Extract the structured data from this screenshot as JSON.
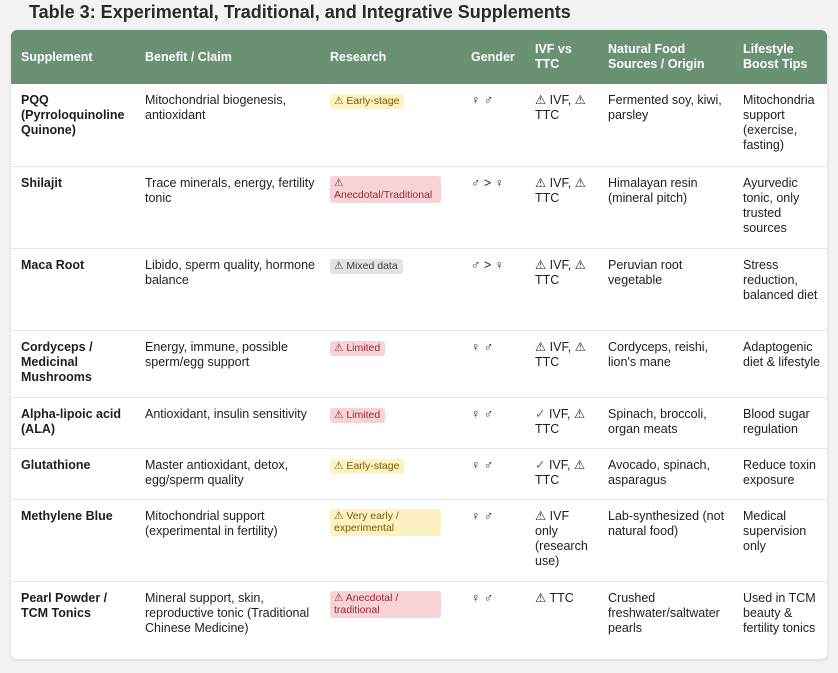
{
  "title": "Table 3: Experimental, Traditional, and Integrative Supplements",
  "colors": {
    "header_bg": "#6a9174",
    "early": "#fdf2c3",
    "limited": "#f8d3d6",
    "mixed": "#e3e3e3",
    "check": "#2e8b3e"
  },
  "columns": [
    "Supplement",
    "Benefit / Claim",
    "Research",
    "Gender",
    "IVF vs TTC",
    "Natural Food Sources / Origin",
    "Lifestyle Boost Tips"
  ],
  "rows": [
    {
      "supplement": "PQQ (Pyrroloquinoline Quinone)",
      "benefit": "Mitochondrial biogenesis, antioxidant",
      "research": "⚠ Early-stage",
      "gender": "♀ ♂",
      "ivf": "⚠ IVF, ⚠ TTC",
      "sources": "Fermented soy, kiwi, parsley",
      "tips": "Mitochondria support (exercise, fasting)"
    },
    {
      "supplement": "Shilajit",
      "benefit": "Trace minerals, energy, fertility tonic",
      "research": "⚠ Anecdotal/Traditional",
      "gender": "♂ > ♀",
      "ivf": "⚠ IVF, ⚠ TTC",
      "sources": "Himalayan resin (mineral pitch)",
      "tips": "Ayurvedic tonic, only trusted sources"
    },
    {
      "supplement": "Maca Root",
      "benefit": "Libido, sperm quality, hormone balance",
      "research": "⚠ Mixed data",
      "gender": "♂ > ♀",
      "ivf": "⚠ IVF, ⚠ TTC",
      "sources": "Peruvian root vegetable",
      "tips": "Stress reduction, balanced diet"
    },
    {
      "supplement": "Cordyceps / Medicinal Mushrooms",
      "benefit": "Energy, immune, possible sperm/egg support",
      "research": "⚠ Limited",
      "gender": "♀ ♂",
      "ivf": "⚠ IVF, ⚠ TTC",
      "sources": "Cordyceps, reishi, lion's mane",
      "tips": "Adaptogenic diet & lifestyle"
    },
    {
      "supplement": "Alpha-lipoic acid (ALA)",
      "benefit": "Antioxidant, insulin sensitivity",
      "research": "⚠ Limited",
      "gender": "♀ ♂",
      "ivf_mark": "✓",
      "ivf": " IVF, ⚠ TTC",
      "sources": "Spinach, broccoli, organ meats",
      "tips": "Blood sugar regulation"
    },
    {
      "supplement": "Glutathione",
      "benefit": "Master antioxidant, detox, egg/sperm quality",
      "research": "⚠ Early-stage",
      "gender": "♀ ♂",
      "ivf_mark": "✓",
      "ivf": " IVF, ⚠ TTC",
      "sources": "Avocado, spinach, asparagus",
      "tips": "Reduce toxin exposure"
    },
    {
      "supplement": "Methylene Blue",
      "benefit": "Mitochondrial support (experimental in fertility)",
      "research": "⚠ Very early / experimental",
      "gender": "♀ ♂",
      "ivf": "⚠ IVF only (research use)",
      "sources": "Lab-synthesized (not natural food)",
      "tips": "Medical supervision only"
    },
    {
      "supplement": "Pearl Powder / TCM Tonics",
      "benefit": "Mineral support, skin, reproductive tonic (Traditional Chinese Medicine)",
      "research": "⚠ Anecdotal / traditional",
      "gender": "♀ ♂",
      "ivf": "⚠ TTC",
      "sources": "Crushed freshwater/saltwater pearls",
      "tips": "Used in TCM beauty & fertility tonics"
    }
  ]
}
